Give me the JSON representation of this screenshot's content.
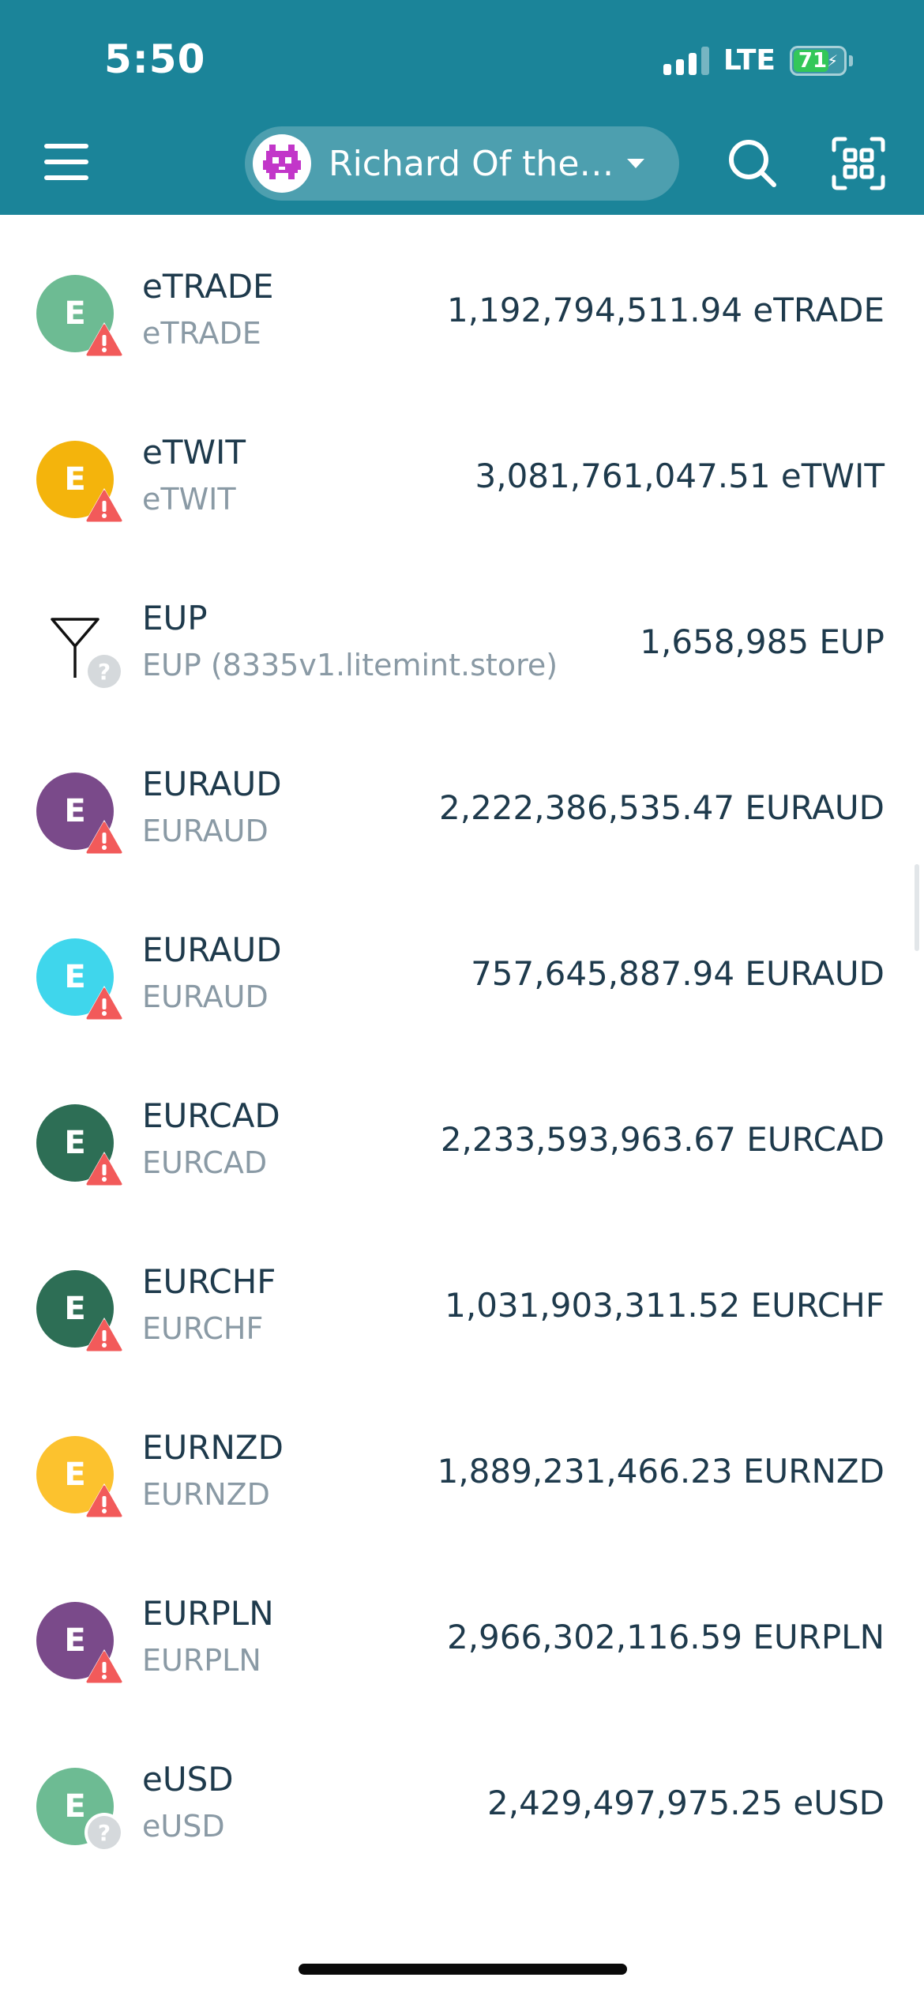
{
  "status_bar": {
    "time": "5:50",
    "network": "LTE",
    "battery": "71",
    "battery_level": 0.71
  },
  "header": {
    "account_name": "Richard Of the…",
    "icons": {
      "menu": "hamburger-menu-icon",
      "search": "search-icon",
      "scan": "qr-scan-icon",
      "dropdown": "chevron-down-icon"
    }
  },
  "colors": {
    "header_bg": "#1b8499",
    "warning": "#f25a5a",
    "unknown_badge": "#d5d9dc",
    "battery_fill": "#34c759"
  },
  "assets": [
    {
      "icon_letter": "E",
      "color": "#6dbb93",
      "name": "eTRADE",
      "subtitle": "eTRADE",
      "amount": "1,192,794,511.94 eTRADE",
      "badge": "warning"
    },
    {
      "icon_letter": "E",
      "color": "#f4b40c",
      "name": "eTWIT",
      "subtitle": "eTWIT",
      "amount": "3,081,761,047.51 eTWIT",
      "badge": "warning"
    },
    {
      "icon_letter": "",
      "color": "",
      "name": "EUP",
      "subtitle": "EUP (8335v1.litemint.store)",
      "amount": "1,658,985 EUP",
      "badge": "unknown",
      "custom_icon": "y-shape-logo"
    },
    {
      "icon_letter": "E",
      "color": "#7a4a8a",
      "name": "EURAUD",
      "subtitle": "EURAUD",
      "amount": "2,222,386,535.47 EURAUD",
      "badge": "warning"
    },
    {
      "icon_letter": "E",
      "color": "#3fd6ec",
      "name": "EURAUD",
      "subtitle": "EURAUD",
      "amount": "757,645,887.94 EURAUD",
      "badge": "warning"
    },
    {
      "icon_letter": "E",
      "color": "#2d6e55",
      "name": "EURCAD",
      "subtitle": "EURCAD",
      "amount": "2,233,593,963.67 EURCAD",
      "badge": "warning"
    },
    {
      "icon_letter": "E",
      "color": "#2d6e55",
      "name": "EURCHF",
      "subtitle": "EURCHF",
      "amount": "1,031,903,311.52 EURCHF",
      "badge": "warning"
    },
    {
      "icon_letter": "E",
      "color": "#fcc22e",
      "name": "EURNZD",
      "subtitle": "EURNZD",
      "amount": "1,889,231,466.23 EURNZD",
      "badge": "warning"
    },
    {
      "icon_letter": "E",
      "color": "#7a4a8a",
      "name": "EURPLN",
      "subtitle": "EURPLN",
      "amount": "2,966,302,116.59 EURPLN",
      "badge": "warning"
    },
    {
      "icon_letter": "E",
      "color": "#6dbb93",
      "name": "eUSD",
      "subtitle": "eUSD",
      "amount": "2,429,497,975.25 eUSD",
      "badge": "unknown"
    }
  ]
}
